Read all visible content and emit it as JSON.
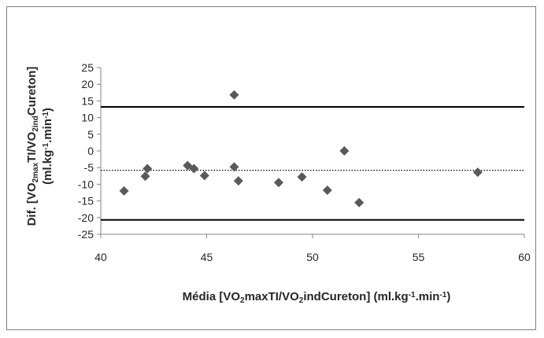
{
  "chart_data": {
    "type": "scatter",
    "xlabel": {
      "parts": [
        {
          "t": "Média [VO"
        },
        {
          "t": "2",
          "sub": true
        },
        {
          "t": "maxTI/VO"
        },
        {
          "t": "2",
          "sub": true
        },
        {
          "t": "indCureton] (ml.kg"
        },
        {
          "t": "-1",
          "sup": true
        },
        {
          "t": ".min"
        },
        {
          "t": "-1",
          "sup": true
        },
        {
          "t": ")"
        }
      ]
    },
    "ylabel": {
      "line1": [
        {
          "t": "Dif. [VO"
        },
        {
          "t": "2max",
          "sub": true
        },
        {
          "t": "TI/VO"
        },
        {
          "t": "2ind",
          "sub": true
        },
        {
          "t": "Cureton]"
        }
      ],
      "line2": [
        {
          "t": "(ml.kg"
        },
        {
          "t": "-1",
          "sup": true
        },
        {
          "t": ".min"
        },
        {
          "t": "-1",
          "sup": true
        },
        {
          "t": ")"
        }
      ]
    },
    "xlim": [
      40,
      60
    ],
    "ylim": [
      -25,
      25
    ],
    "xticks": [
      40,
      45,
      50,
      55,
      60
    ],
    "yticks": [
      -25,
      -20,
      -15,
      -10,
      -5,
      0,
      5,
      10,
      15,
      20,
      25
    ],
    "grid": false,
    "marker": "diamond",
    "marker_color": "#595959",
    "points": [
      {
        "x": 41.1,
        "y": -12.0
      },
      {
        "x": 42.1,
        "y": -7.6
      },
      {
        "x": 42.2,
        "y": -5.3
      },
      {
        "x": 44.1,
        "y": -4.4
      },
      {
        "x": 44.4,
        "y": -5.3
      },
      {
        "x": 44.9,
        "y": -7.4
      },
      {
        "x": 46.3,
        "y": -4.8
      },
      {
        "x": 46.3,
        "y": 16.8
      },
      {
        "x": 46.5,
        "y": -9.0
      },
      {
        "x": 48.4,
        "y": -9.5
      },
      {
        "x": 49.5,
        "y": -7.8
      },
      {
        "x": 50.7,
        "y": -11.8
      },
      {
        "x": 51.5,
        "y": 0.0
      },
      {
        "x": 52.2,
        "y": -15.5
      },
      {
        "x": 57.8,
        "y": -6.4
      }
    ],
    "reference_lines": [
      {
        "y": 13.2,
        "style": "solid",
        "role": "upper-limit"
      },
      {
        "y": -5.8,
        "style": "dotted",
        "role": "mean"
      },
      {
        "y": -20.7,
        "style": "solid",
        "role": "lower-limit"
      }
    ]
  }
}
